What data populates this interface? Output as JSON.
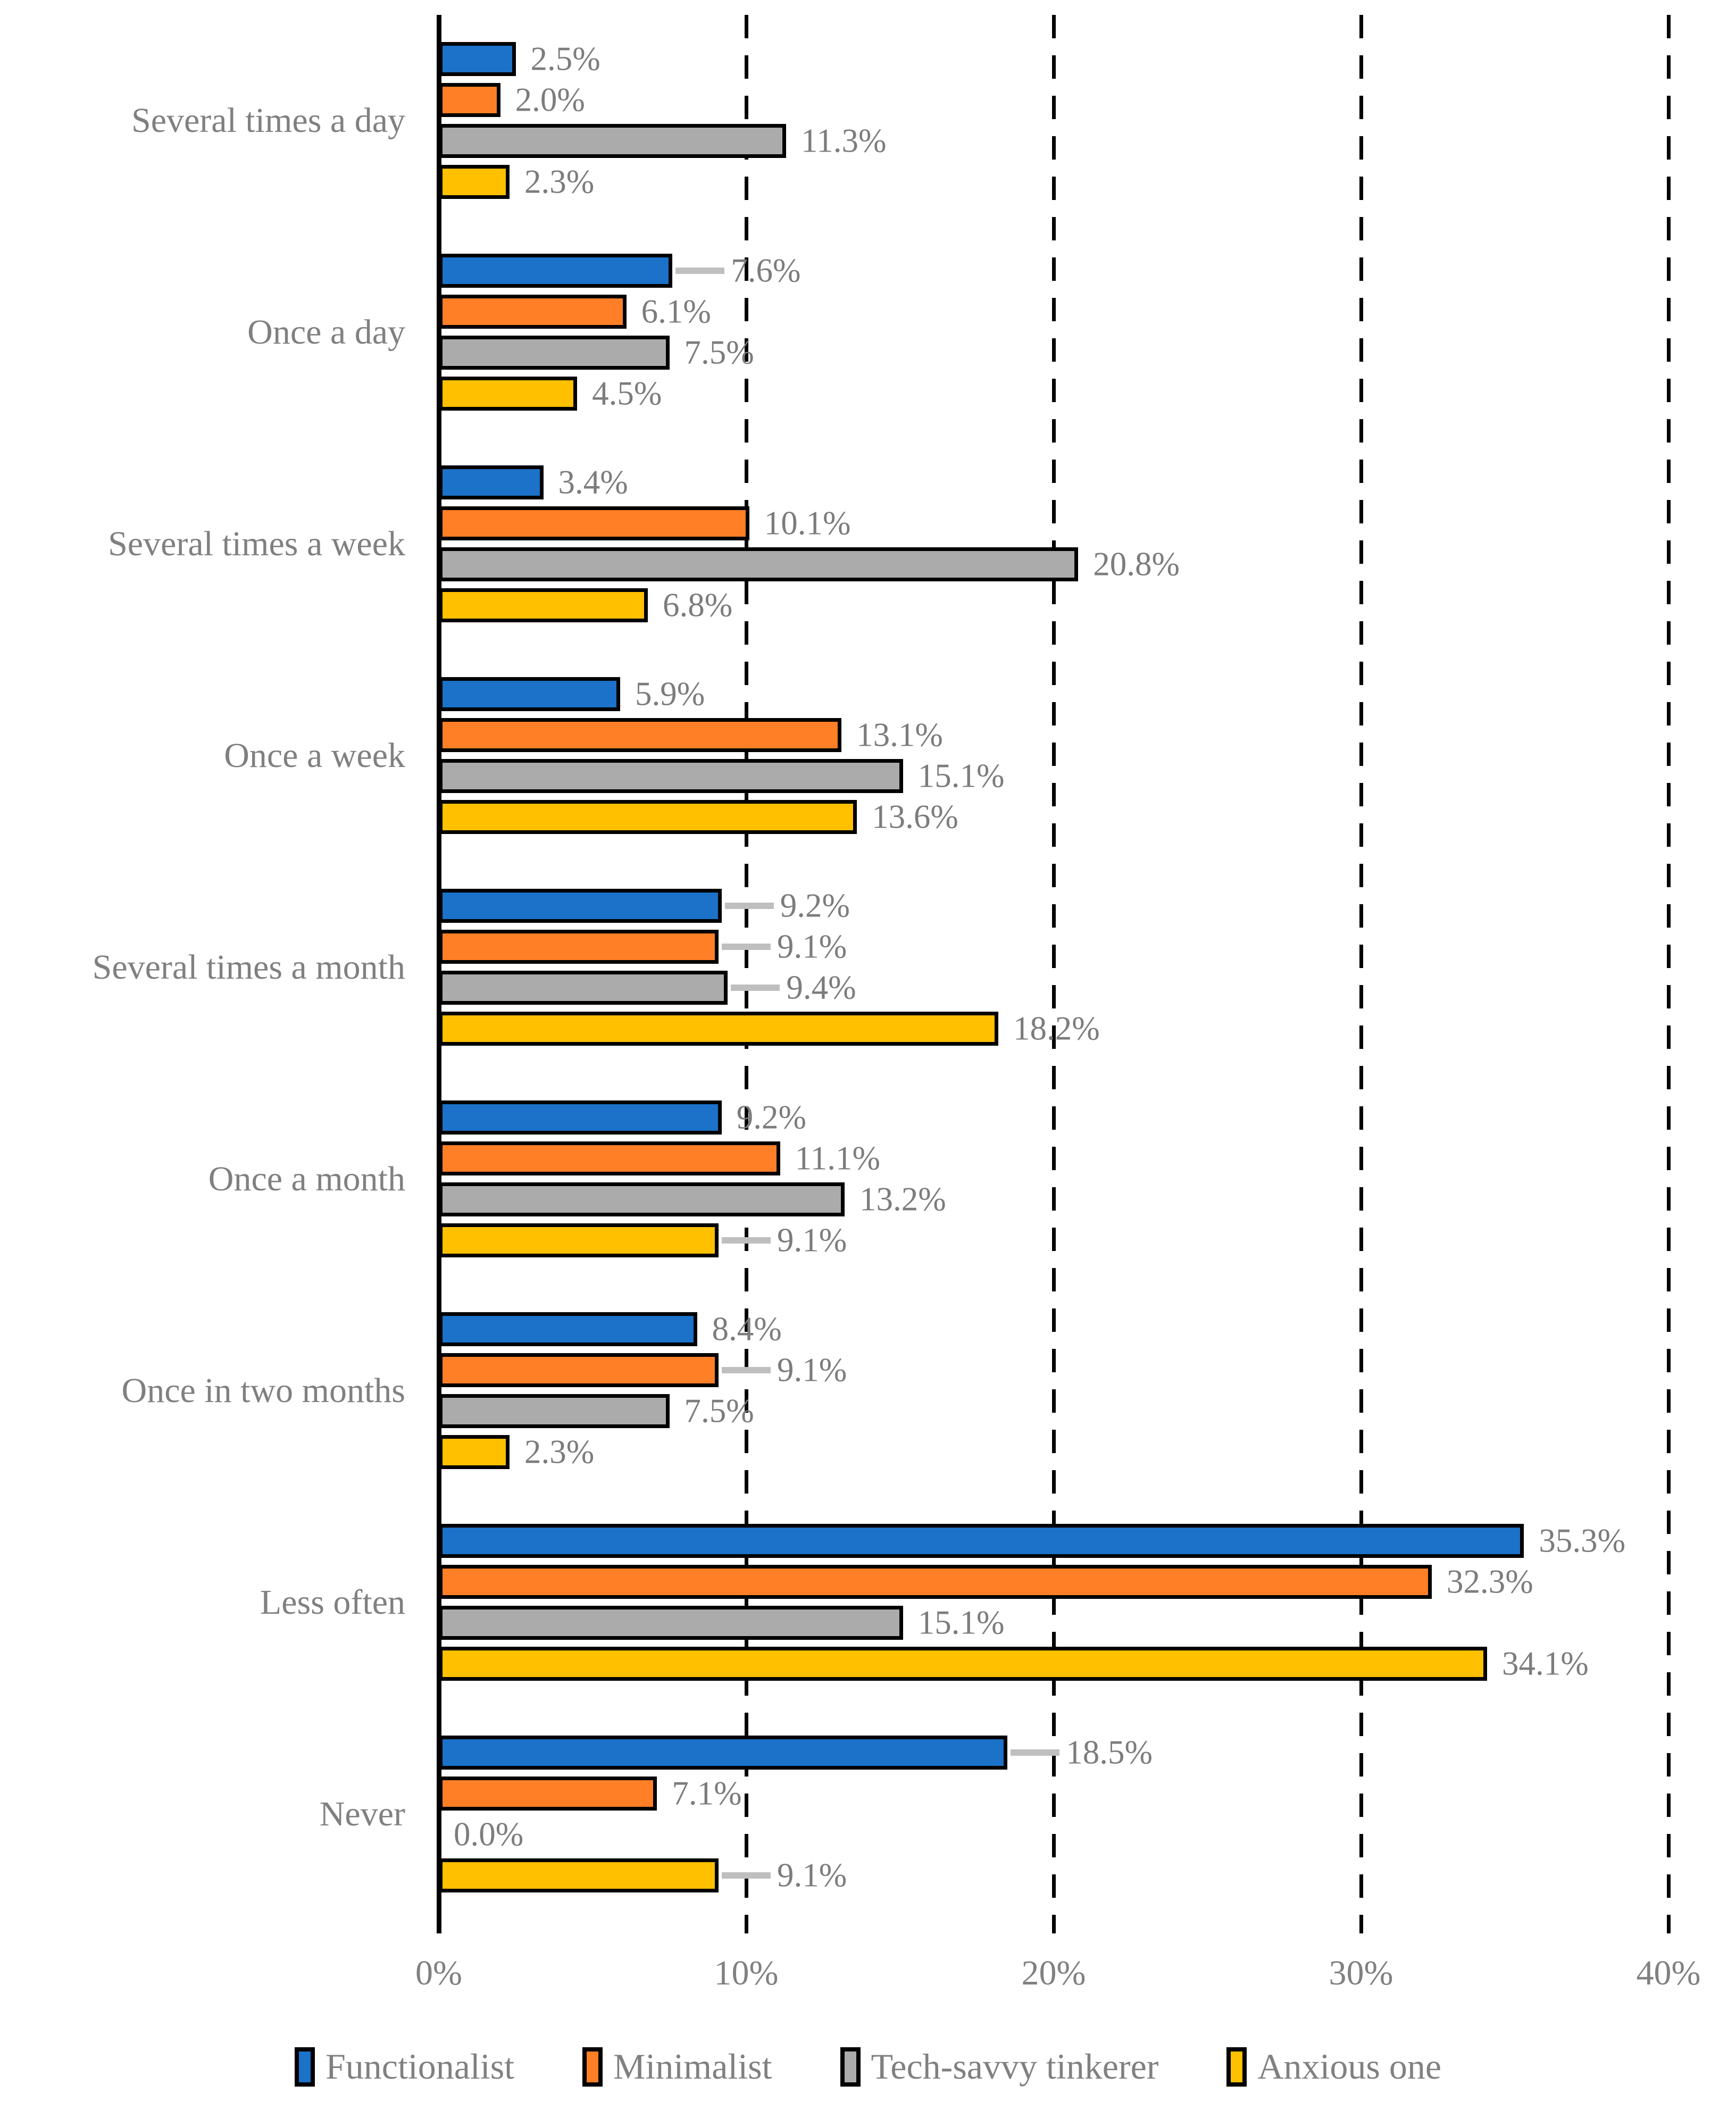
{
  "chart_data": {
    "type": "bar",
    "orientation": "horizontal",
    "categories": [
      "Several times a day",
      "Once a day",
      "Several times a week",
      "Once a week",
      "Several times a month",
      "Once a month",
      "Once in two months",
      "Less often",
      "Never"
    ],
    "series": [
      {
        "name": "Functionalist",
        "color": "#1b72c8",
        "values": [
          2.5,
          7.6,
          3.4,
          5.9,
          9.2,
          9.2,
          8.4,
          35.3,
          18.5
        ],
        "labels": [
          "2.5%",
          "7.6%",
          "3.4%",
          "5.9%",
          "9.2%",
          "9.2%",
          "8.4%",
          "35.3%",
          "18.5%"
        ]
      },
      {
        "name": "Minimalist",
        "color": "#ff7f27",
        "values": [
          2.0,
          6.1,
          10.1,
          13.1,
          9.1,
          11.1,
          9.1,
          32.3,
          7.1
        ],
        "labels": [
          "2.0%",
          "6.1%",
          "10.1%",
          "13.1%",
          "9.1%",
          "11.1%",
          "9.1%",
          "32.3%",
          "7.1%"
        ]
      },
      {
        "name": "Tech-savvy tinkerer",
        "color": "#ababab",
        "values": [
          11.3,
          7.5,
          20.8,
          15.1,
          9.4,
          13.2,
          7.5,
          15.1,
          0.0
        ],
        "labels": [
          "11.3%",
          "7.5%",
          "20.8%",
          "15.1%",
          "9.4%",
          "13.2%",
          "7.5%",
          "15.1%",
          "0.0%"
        ]
      },
      {
        "name": "Anxious one",
        "color": "#ffc000",
        "values": [
          2.3,
          4.5,
          6.8,
          13.6,
          18.2,
          9.1,
          2.3,
          34.1,
          9.1
        ],
        "labels": [
          "2.3%",
          "4.5%",
          "6.8%",
          "13.6%",
          "18.2%",
          "9.1%",
          "2.3%",
          "34.1%",
          "9.1%"
        ]
      }
    ],
    "xlim": [
      0,
      40
    ],
    "xticks": [
      {
        "value": 0,
        "label": "0%"
      },
      {
        "value": 10,
        "label": "10%"
      },
      {
        "value": 20,
        "label": "20%"
      },
      {
        "value": 30,
        "label": "30%"
      },
      {
        "value": 40,
        "label": "40%"
      }
    ],
    "grid": {
      "vertical_gridlines": "dashed",
      "gridline_color": "#000000",
      "axis_color": "#000000"
    },
    "bar_border_color": "#000000",
    "value_label_color": "#7c7c7c",
    "category_label_color": "#808080",
    "leader_line_color": "#bfbfbf",
    "leader_label_positions": [
      [
        1,
        0
      ],
      [
        4,
        0
      ],
      [
        4,
        1
      ],
      [
        4,
        2
      ],
      [
        5,
        3
      ],
      [
        6,
        1
      ],
      [
        8,
        0
      ],
      [
        8,
        3
      ]
    ],
    "legend_position": "bottom"
  }
}
